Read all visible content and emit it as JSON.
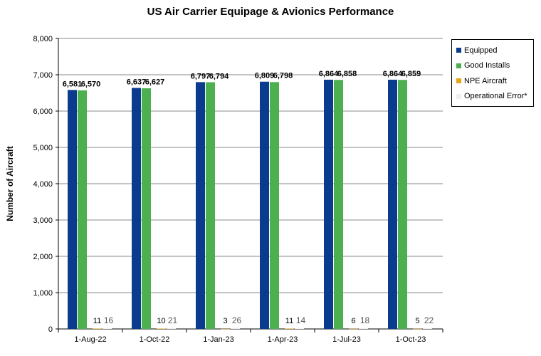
{
  "chart_data": {
    "type": "bar",
    "title": "US Air Carrier Equipage & Avionics Performance",
    "xlabel": "",
    "ylabel": "Number of Aircraft",
    "ylim": [
      0,
      8000
    ],
    "yticks": [
      0,
      1000,
      2000,
      3000,
      4000,
      5000,
      6000,
      7000,
      8000
    ],
    "ytick_labels": [
      "0",
      "1,000",
      "2,000",
      "3,000",
      "4,000",
      "5,000",
      "6,000",
      "7,000",
      "8,000"
    ],
    "categories": [
      "1-Aug-22",
      "1-Oct-22",
      "1-Jan-23",
      "1-Apr-23",
      "1-Jul-23",
      "1-Oct-23"
    ],
    "grid": true,
    "legend_position": "right",
    "series": [
      {
        "name": "Equipped",
        "color": "#0A3B8C",
        "values": [
          6581,
          6637,
          6797,
          6809,
          6864,
          6864
        ],
        "labels": [
          "6,581",
          "6,637",
          "6,797",
          "6,809",
          "6,864",
          "6,864"
        ]
      },
      {
        "name": "Good Installs",
        "color": "#4CAF50",
        "values": [
          6570,
          6627,
          6794,
          6798,
          6858,
          6859
        ],
        "labels": [
          "6,570",
          "6,627",
          "6,794",
          "6,798",
          "6,858",
          "6,859"
        ]
      },
      {
        "name": "NPE Aircraft",
        "color": "#E8A317",
        "values": [
          11,
          10,
          3,
          11,
          6,
          5
        ],
        "labels": [
          "11",
          "10",
          "3",
          "11",
          "6",
          "5"
        ]
      },
      {
        "name": "Operational Error*",
        "color": "#EEEEEE",
        "values": [
          16,
          21,
          26,
          14,
          18,
          22
        ],
        "labels": [
          "16",
          "21",
          "26",
          "14",
          "18",
          "22"
        ]
      }
    ]
  }
}
